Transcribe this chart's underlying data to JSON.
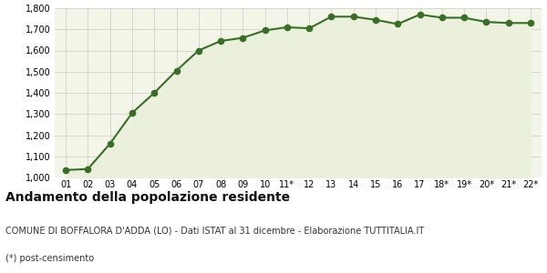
{
  "x_labels": [
    "01",
    "02",
    "03",
    "04",
    "05",
    "06",
    "07",
    "08",
    "09",
    "10",
    "11*",
    "12",
    "13",
    "14",
    "15",
    "16",
    "17",
    "18*",
    "19*",
    "20*",
    "21*",
    "22*"
  ],
  "y_values": [
    1035,
    1040,
    1160,
    1305,
    1400,
    1505,
    1600,
    1645,
    1660,
    1695,
    1710,
    1705,
    1760,
    1760,
    1745,
    1725,
    1770,
    1755,
    1755,
    1735,
    1730,
    1730
  ],
  "ylim": [
    1000,
    1800
  ],
  "yticks": [
    1000,
    1100,
    1200,
    1300,
    1400,
    1500,
    1600,
    1700,
    1800
  ],
  "line_color": "#3a6e28",
  "fill_color": "#eaf0dc",
  "marker_color": "#3a6e28",
  "bg_color": "#f2f5e8",
  "grid_color": "#ccccbb",
  "title": "Andamento della popolazione residente",
  "subtitle": "COMUNE DI BOFFALORA D'ADDA (LO) - Dati ISTAT al 31 dicembre - Elaborazione TUTTITALIA.IT",
  "footnote": "(*) post-censimento",
  "title_fontsize": 10,
  "subtitle_fontsize": 7,
  "footnote_fontsize": 7
}
